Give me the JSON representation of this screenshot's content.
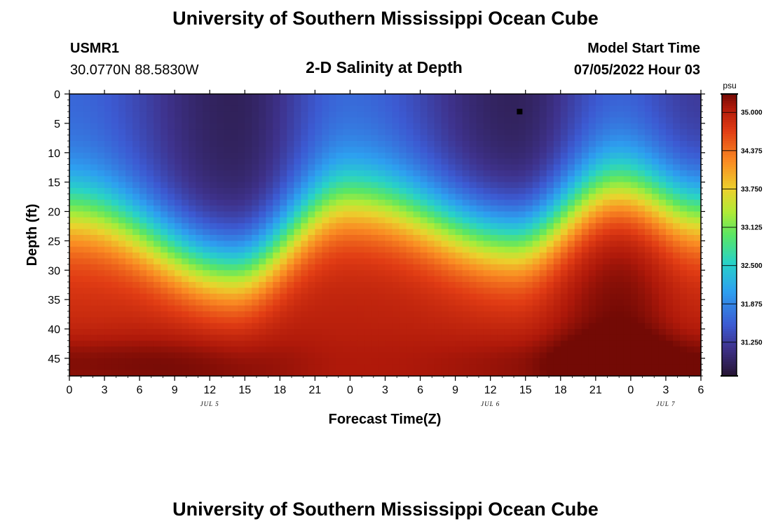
{
  "page": {
    "title": "University of Southern Mississippi Ocean Cube",
    "title_repeat": "University of Southern Mississippi Ocean Cube",
    "station": "USMR1",
    "coords": "30.0770N  88.5830W",
    "chart_title": "2-D Salinity at Depth",
    "model_start_label": "Model Start Time",
    "model_start_value": "07/05/2022 Hour 03"
  },
  "chart_data": {
    "type": "heatmap",
    "title": "2-D Salinity at Depth",
    "xlabel": "Forecast Time(Z)",
    "ylabel": "Depth (ft)",
    "x_range_hours": [
      0,
      54
    ],
    "x_tick_hours": [
      0,
      3,
      6,
      9,
      12,
      15,
      18,
      21,
      24,
      27,
      30,
      33,
      36,
      39,
      42,
      45,
      48,
      51,
      54
    ],
    "x_tick_labels": [
      "0",
      "3",
      "6",
      "9",
      "12",
      "15",
      "18",
      "21",
      "0",
      "3",
      "6",
      "9",
      "12",
      "15",
      "18",
      "21",
      "0",
      "3",
      "6"
    ],
    "date_labels": [
      {
        "hour": 12,
        "text": "JUL 5"
      },
      {
        "hour": 36,
        "text": "JUL 6"
      },
      {
        "hour": 51,
        "text": "JUL 7"
      }
    ],
    "y_range_ft": [
      0,
      48
    ],
    "y_ticks": [
      0,
      5,
      10,
      15,
      20,
      25,
      30,
      35,
      40,
      45
    ],
    "y_tick_labels": [
      "0",
      "5",
      "10",
      "15",
      "20",
      "25",
      "30",
      "35",
      "40",
      "45"
    ],
    "colorbar": {
      "unit": "psu",
      "range": [
        30.7,
        35.3
      ],
      "ticks": [
        31.25,
        31.875,
        32.5,
        33.125,
        33.75,
        34.375,
        35.0
      ],
      "tick_labels": [
        "31.250",
        "31.875",
        "32.500",
        "33.125",
        "33.750",
        "34.375",
        "35.000"
      ]
    },
    "field_samples": [
      {
        "hour": 0,
        "depth_surface": 31.6,
        "halocline_depth_ft": 20,
        "depth_bottom": 34.9
      },
      {
        "hour": 14,
        "depth_surface": 30.9,
        "halocline_depth_ft": 30,
        "depth_bottom": 35.1
      },
      {
        "hour": 24,
        "depth_surface": 31.6,
        "halocline_depth_ft": 18,
        "depth_bottom": 35.0
      },
      {
        "hour": 38,
        "depth_surface": 30.9,
        "halocline_depth_ft": 25,
        "depth_bottom": 35.0
      },
      {
        "hour": 47,
        "depth_surface": 31.5,
        "halocline_depth_ft": 16,
        "depth_bottom": 35.3
      },
      {
        "hour": 54,
        "depth_surface": 31.2,
        "halocline_depth_ft": 20,
        "depth_bottom": 35.0
      }
    ],
    "marker": {
      "hour": 38.5,
      "depth_ft": 3
    }
  },
  "colors": {
    "text": "#000000",
    "background": "#ffffff"
  }
}
